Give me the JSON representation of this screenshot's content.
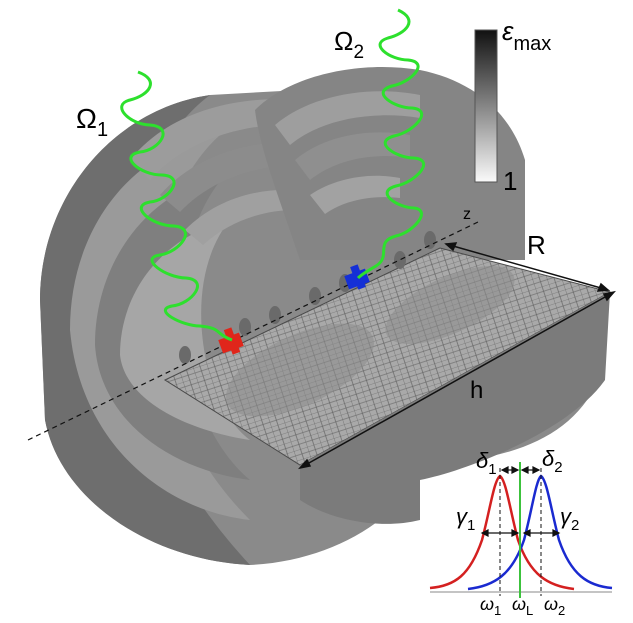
{
  "labels": {
    "omega1": "Ω",
    "omega1_sub": "1",
    "omega2": "Ω",
    "omega2_sub": "2",
    "z_axis": "z",
    "radius": "R",
    "height": "h"
  },
  "colorbar": {
    "top_label": "ε",
    "top_label_sub": "max",
    "bottom_label": "1"
  },
  "spectrum": {
    "delta1": "δ",
    "delta1_sub": "1",
    "delta2": "δ",
    "delta2_sub": "2",
    "gamma1": "γ",
    "gamma1_sub": "1",
    "gamma2": "γ",
    "gamma2_sub": "2",
    "omega1_tick": "ω",
    "omega1_tick_sub": "1",
    "omegaL_tick": "ω",
    "omegaL_tick_sub": "L",
    "omega2_tick": "ω",
    "omega2_tick_sub": "2"
  },
  "colors": {
    "emitter1": "#e0261b",
    "emitter2": "#1530d6",
    "photon_wave": "#2de02d",
    "laser_line": "#3cc23c",
    "curve1": "#d42020",
    "curve2": "#1a2ad0"
  }
}
